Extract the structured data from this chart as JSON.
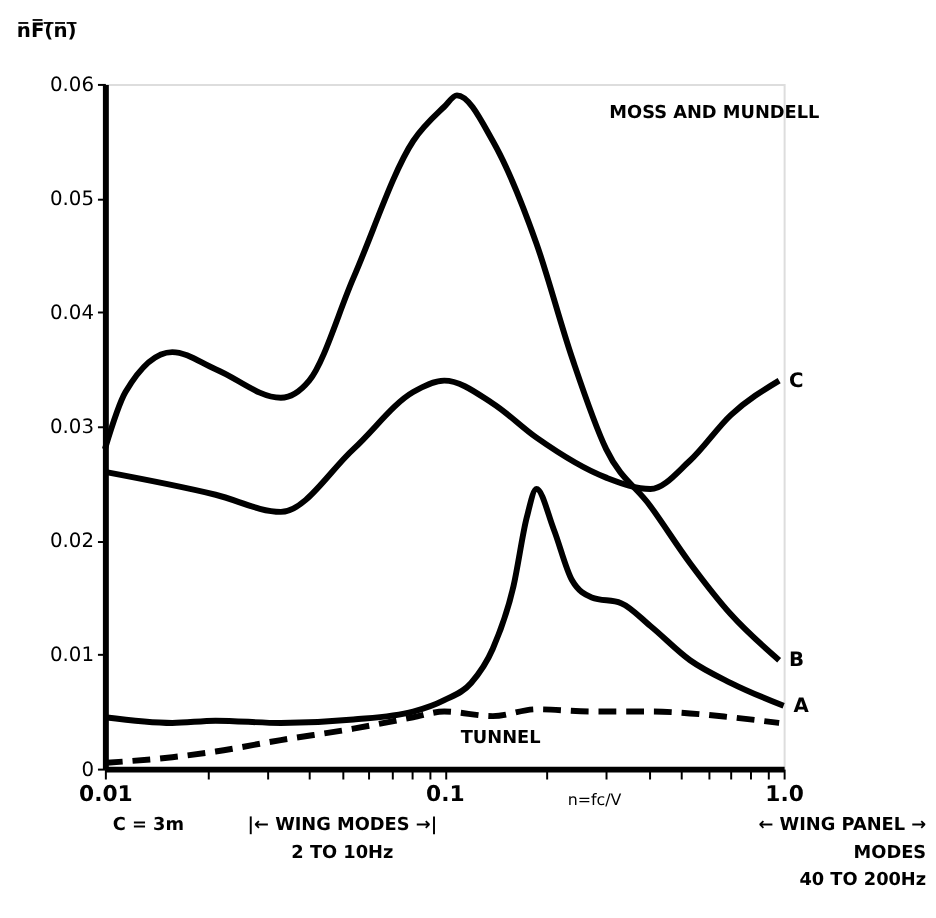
{
  "chart_data": {
    "type": "line",
    "ylabel": "n̅F̅(̅n̅)̅",
    "xlabel": "n=fc/V",
    "log": "x",
    "xlim": [
      0.01,
      1.0
    ],
    "xticks": [
      0.01,
      {
        "value": 0.02,
        "label": null
      },
      {
        "value": 0.03,
        "label": null
      },
      {
        "value": 0.04,
        "label": null
      },
      {
        "value": 0.05,
        "label": null
      },
      {
        "value": 0.06,
        "label": null
      },
      {
        "value": 0.07,
        "label": null
      },
      {
        "value": 0.08,
        "label": null
      },
      {
        "value": 0.09,
        "label": null
      },
      0.1,
      {
        "value": 0.2,
        "label": null
      },
      {
        "value": 0.3,
        "label": null
      },
      {
        "value": 0.4,
        "label": null
      },
      {
        "value": 0.5,
        "label": null
      },
      {
        "value": 0.6,
        "label": null
      },
      {
        "value": 0.7,
        "label": null
      },
      {
        "value": 0.8,
        "label": null
      },
      {
        "value": 0.9,
        "label": null
      },
      {
        "value": 1.0,
        "label": "1.0"
      }
    ],
    "ylim": [
      0,
      0.06
    ],
    "yticks": [
      0,
      0.01,
      0.02,
      0.03,
      0.04,
      0.05,
      0.06
    ],
    "grid": false,
    "marker": "none",
    "series": [
      {
        "name": "A",
        "color": "#000000",
        "line_style": "solid",
        "x": [
          0.01,
          0.0158,
          0.0212,
          0.033,
          0.054,
          0.081,
          0.1,
          0.12,
          0.139,
          0.16,
          0.175,
          0.187,
          0.21,
          0.238,
          0.272,
          0.332,
          0.405,
          0.53,
          0.7,
          1.0
        ],
        "values": [
          0.0045,
          0.004,
          0.0042,
          0.004,
          0.0043,
          0.005,
          0.006,
          0.0075,
          0.0105,
          0.016,
          0.022,
          0.0245,
          0.021,
          0.0165,
          0.015,
          0.0145,
          0.0125,
          0.0095,
          0.0075,
          0.0055
        ]
      },
      {
        "name": "B",
        "color": "#000000",
        "line_style": "solid",
        "x": [
          0.01,
          0.0115,
          0.0158,
          0.0212,
          0.033,
          0.04,
          0.054,
          0.081,
          0.1,
          0.109,
          0.139,
          0.187,
          0.238,
          0.3,
          0.405,
          0.53,
          0.7,
          0.97
        ],
        "values": [
          0.028,
          0.033,
          0.0365,
          0.035,
          0.0325,
          0.034,
          0.043,
          0.055,
          0.058,
          0.059,
          0.055,
          0.046,
          0.036,
          0.028,
          0.023,
          0.018,
          0.0135,
          0.0095
        ]
      },
      {
        "name": "C",
        "color": "#000000",
        "line_style": "solid",
        "x": [
          0.01,
          0.0212,
          0.033,
          0.054,
          0.081,
          0.1,
          0.139,
          0.187,
          0.3,
          0.405,
          0.53,
          0.7,
          0.97
        ],
        "values": [
          0.026,
          0.024,
          0.0225,
          0.028,
          0.033,
          0.034,
          0.032,
          0.029,
          0.0255,
          0.0245,
          0.027,
          0.031,
          0.034
        ]
      },
      {
        "color": "#000000",
        "line_style": "dashed",
        "x": [
          0.01,
          0.0158,
          0.0212,
          0.033,
          0.054,
          0.081,
          0.1,
          0.139,
          0.187,
          0.272,
          0.405,
          0.7,
          0.97
        ],
        "values": [
          0.0005,
          0.001,
          0.0015,
          0.0025,
          0.0035,
          0.0045,
          0.005,
          0.0046,
          0.0052,
          0.005,
          0.005,
          0.0045,
          0.004
        ]
      }
    ],
    "annotations": [
      "MOSS AND MUNDELL",
      "C = 3m",
      "|← WING MODES →|\n2 TO 10Hz",
      "← WING PANEL →\nMODES\n40 TO 200Hz",
      "TUNNEL"
    ]
  }
}
